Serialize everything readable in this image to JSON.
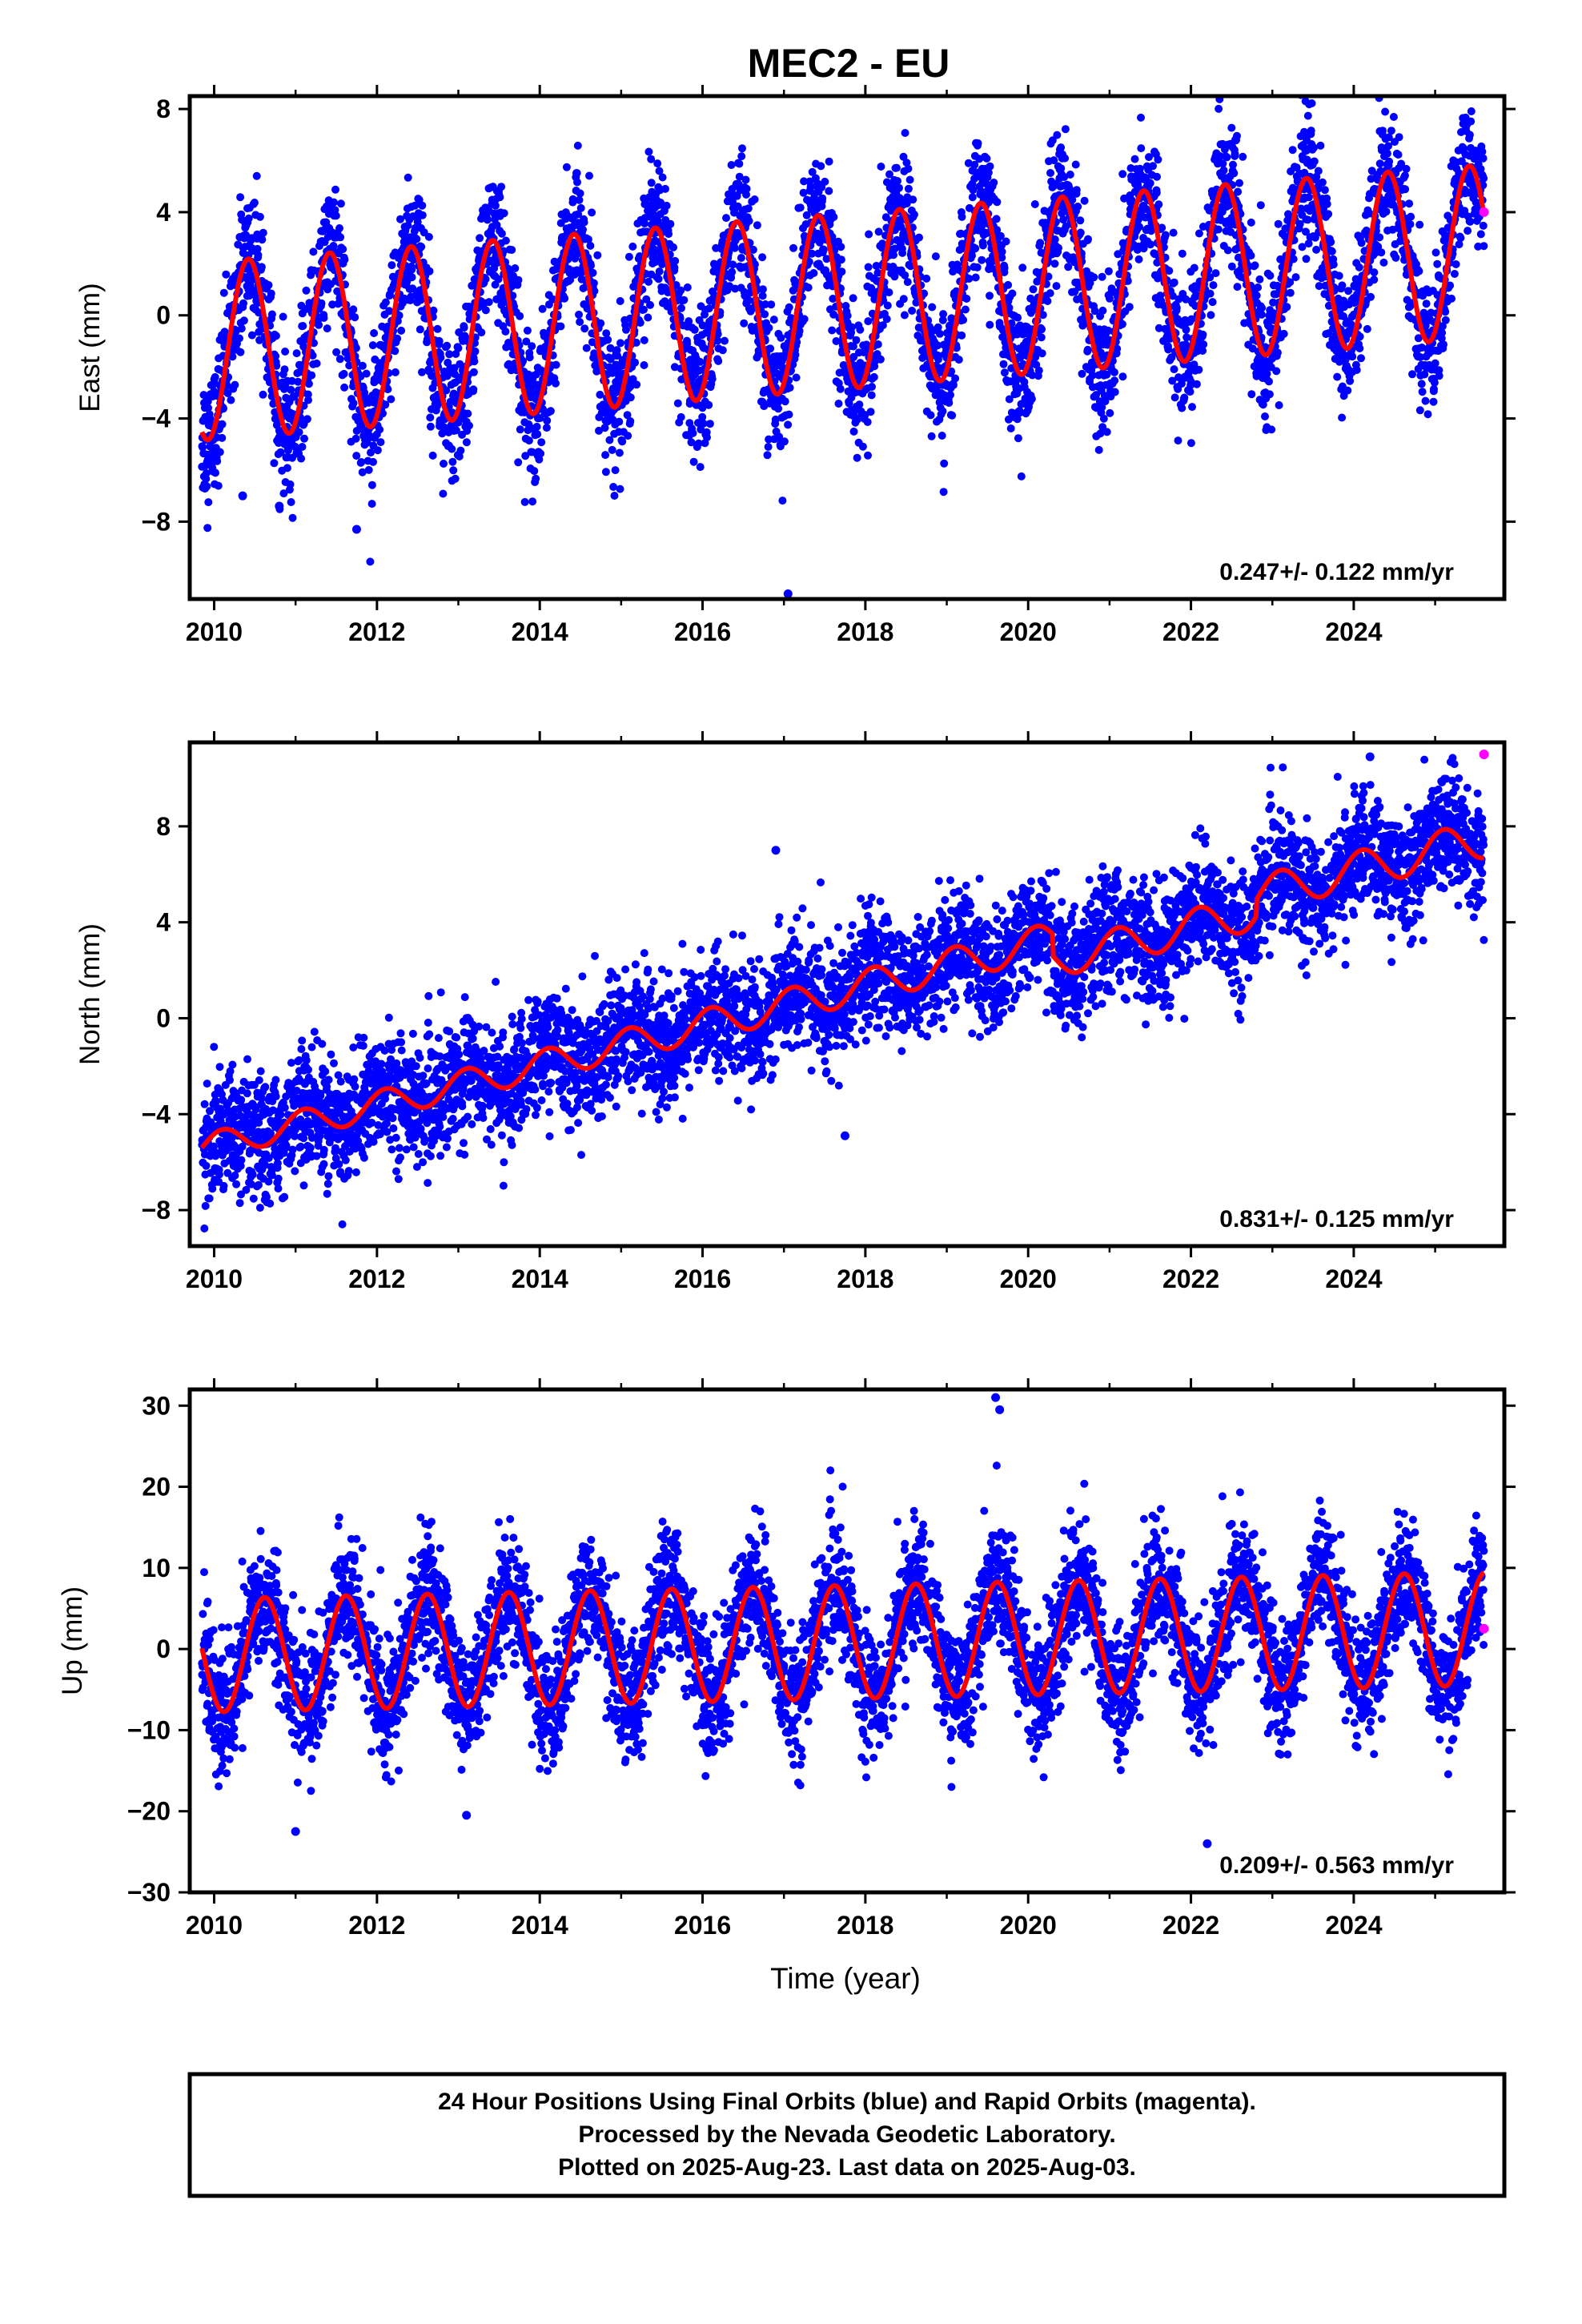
{
  "title": "MEC2 - EU",
  "footer": {
    "lines": [
      "24 Hour Positions Using Final Orbits (blue) and Rapid Orbits (magenta).",
      "Processed by the Nevada Geodetic Laboratory.",
      "Plotted on 2025-Aug-23. Last data on 2025-Aug-03."
    ]
  },
  "colors": {
    "final": "#0000ff",
    "rapid": "#ff00ff",
    "model": "#ff0000",
    "frame": "#000000"
  },
  "chart_data": [
    {
      "type": "scatter",
      "title": "MEC2 - EU",
      "ylabel": "East (mm)",
      "xlabel": "",
      "xlim": [
        2009.7,
        2025.85
      ],
      "ylim": [
        -11,
        8.5
      ],
      "x_ticks": [
        2010,
        2012,
        2014,
        2016,
        2018,
        2020,
        2022,
        2024
      ],
      "y_ticks": [
        -8,
        -4,
        0,
        4,
        8
      ],
      "y_tick_labels": [
        "−8",
        "−4",
        "0",
        "4",
        "8"
      ],
      "rate_text": "0.247+/- 0.122 mm/yr",
      "data_start": 2009.85,
      "data_end": 2025.6,
      "series": [
        {
          "role": "final",
          "sampling": "daily positions 2009.85–2025.6",
          "scatter_mm": 1.3,
          "color": "#0000ff"
        },
        {
          "role": "rapid",
          "x": [
            2025.6
          ],
          "y": [
            4.0
          ],
          "color": "#ff00ff"
        },
        {
          "role": "model",
          "color": "#ff0000",
          "model": {
            "t0": 2009.85,
            "offset": -1.4,
            "trend": 0.247,
            "amp_start": 3.45,
            "amp_end": 3.35,
            "phase_year": 0.42,
            "steps": []
          }
        }
      ],
      "outliers": [
        [
          2010.35,
          -7.0
        ],
        [
          2011.75,
          -8.3
        ],
        [
          2017.05,
          -10.8
        ],
        [
          2010.8,
          -7.4
        ],
        [
          2022.55,
          6.8
        ]
      ]
    },
    {
      "type": "scatter",
      "ylabel": "North (mm)",
      "xlabel": "",
      "xlim": [
        2009.7,
        2025.85
      ],
      "ylim": [
        -9.5,
        11.5
      ],
      "x_ticks": [
        2010,
        2012,
        2014,
        2016,
        2018,
        2020,
        2022,
        2024
      ],
      "y_ticks": [
        -8,
        -4,
        0,
        4,
        8
      ],
      "y_tick_labels": [
        "−8",
        "−4",
        "0",
        "4",
        "8"
      ],
      "rate_text": "0.831+/- 0.125 mm/yr",
      "data_start": 2009.85,
      "data_end": 2025.6,
      "series": [
        {
          "role": "final",
          "sampling": "daily positions 2009.85–2025.6",
          "scatter_mm": 1.2,
          "color": "#0000ff"
        },
        {
          "role": "rapid",
          "x": [
            2025.6
          ],
          "y": [
            11.0
          ],
          "color": "#ff00ff"
        },
        {
          "role": "model",
          "color": "#ff0000",
          "model": {
            "t0": 2009.85,
            "offset": -5.4,
            "trend": 0.831,
            "amp_start": 0.55,
            "amp_end": 0.8,
            "phase_year": 0.1,
            "steps": [
              [
                2020.3,
                -0.9
              ],
              [
                2022.8,
                0.7
              ]
            ]
          }
        }
      ],
      "outliers": [
        [
          2017.75,
          -4.9
        ],
        [
          2024.2,
          10.9
        ],
        [
          2016.9,
          7.0
        ],
        [
          2018.5,
          1.1
        ]
      ]
    },
    {
      "type": "scatter",
      "ylabel": "Up (mm)",
      "xlabel": "Time (year)",
      "xlim": [
        2009.7,
        2025.85
      ],
      "ylim": [
        -30,
        32
      ],
      "x_ticks": [
        2010,
        2012,
        2014,
        2016,
        2018,
        2020,
        2022,
        2024
      ],
      "y_ticks": [
        -30,
        -20,
        -10,
        0,
        10,
        20,
        30
      ],
      "y_tick_labels": [
        "−30",
        "−20",
        "−10",
        "0",
        "10",
        "20",
        "30"
      ],
      "rate_text": "0.209+/- 0.563 mm/yr",
      "data_start": 2009.85,
      "data_end": 2025.6,
      "series": [
        {
          "role": "final",
          "sampling": "daily positions 2009.85–2025.6",
          "scatter_mm": 3.8,
          "color": "#0000ff"
        },
        {
          "role": "rapid",
          "x": [
            2025.6
          ],
          "y": [
            2.5
          ],
          "color": "#ff00ff"
        },
        {
          "role": "model",
          "color": "#ff0000",
          "model": {
            "t0": 2009.85,
            "offset": -0.8,
            "trend": 0.209,
            "amp_start": 7.0,
            "amp_end": 7.0,
            "phase_year": 0.62,
            "steps": []
          }
        }
      ],
      "outliers": [
        [
          2019.6,
          31.0
        ],
        [
          2019.65,
          29.5
        ],
        [
          2011.0,
          -22.5
        ],
        [
          2013.1,
          -20.5
        ],
        [
          2022.2,
          -24.0
        ]
      ]
    }
  ]
}
